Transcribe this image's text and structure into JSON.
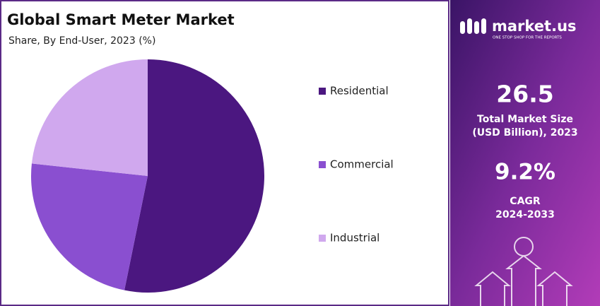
{
  "chart_data": {
    "type": "pie",
    "title": "Global Smart Meter Market",
    "subtitle": "Share, By End-User, 2023 (%)",
    "categories": [
      "Residential",
      "Commercial",
      "Industrial"
    ],
    "values": [
      53.2,
      23.5,
      23.3
    ],
    "colors": [
      "#4b1780",
      "#8a4fd0",
      "#d0a8ee"
    ]
  },
  "panel": {
    "brand": "market.us",
    "tagline": "ONE STOP SHOP FOR THE REPORTS",
    "market_size": "26.5",
    "market_size_label": [
      "Total Market Size",
      "(USD Billion), 2023"
    ],
    "cagr": "9.2%",
    "cagr_label": [
      "CAGR",
      "2024-2033"
    ]
  }
}
